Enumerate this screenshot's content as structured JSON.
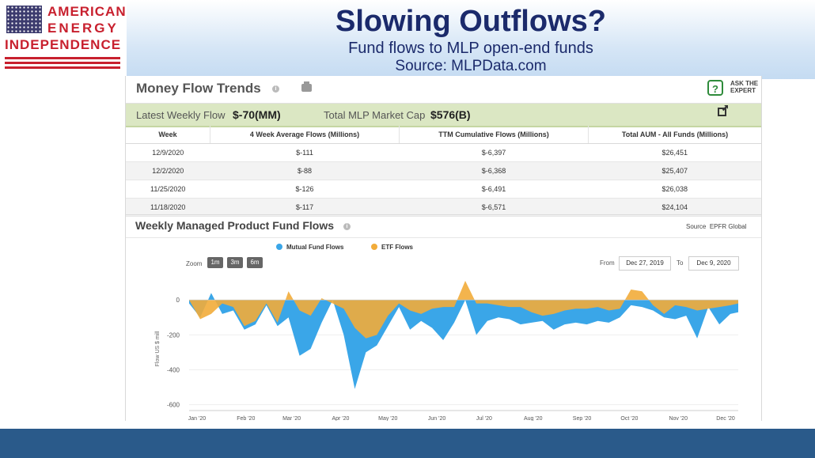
{
  "slide": {
    "title": "Slowing Outflows?",
    "subtitle": "Fund flows to MLP open-end funds",
    "source": "Source: MLPData.com"
  },
  "logo": {
    "line1": "AMERICAN",
    "line2": "ENERGY",
    "line3": "INDEPENDENCE",
    "flag_icon": "us-flag-icon"
  },
  "panel": {
    "title": "Money Flow Trends",
    "ask_expert_top": "ASK THE",
    "ask_expert_bottom": "EXPERT",
    "latest_label": "Latest Weekly Flow",
    "latest_value": "$-70(MM)",
    "cap_label": "Total MLP Market Cap",
    "cap_value": "$576(B)"
  },
  "table": {
    "headers": [
      "Week",
      "4 Week Average Flows (Millions)",
      "TTM Cumulative Flows (Millions)",
      "Total AUM - All Funds (Millions)"
    ],
    "rows": [
      [
        "12/9/2020",
        "$-111",
        "$-6,397",
        "$26,451"
      ],
      [
        "12/2/2020",
        "$-88",
        "$-6,368",
        "$25,407"
      ],
      [
        "11/25/2020",
        "$-126",
        "$-6,491",
        "$26,038"
      ],
      [
        "11/18/2020",
        "$-117",
        "$-6,571",
        "$24,104"
      ]
    ]
  },
  "weekly": {
    "title": "Weekly Managed Product Fund Flows",
    "source_label": "Source",
    "source_value": "EPFR Global",
    "zoom_label": "Zoom",
    "zoom_buttons": [
      "1m",
      "3m",
      "6m"
    ],
    "from_label": "From",
    "from_value": "Dec 27, 2019",
    "to_label": "To",
    "to_value": "Dec 9, 2020"
  },
  "colors": {
    "mutual": "#3aa6e8",
    "etf": "#f2ac3a",
    "title_blue": "#1b2a6b",
    "bottom_bar": "#2a5a8a"
  },
  "chart_data": {
    "type": "area",
    "ylabel": "Flow US $ mill",
    "ylim": [
      -620,
      60
    ],
    "yticks": [
      0,
      -200,
      -400,
      -600
    ],
    "x_tick_labels": [
      "Jan '20",
      "Feb '20",
      "Mar '20",
      "Apr '20",
      "May '20",
      "Jun '20",
      "Jul '20",
      "Aug '20",
      "Sep '20",
      "Oct '20",
      "Nov '20",
      "Dec '20"
    ],
    "x_start": "2019-12-27",
    "x_end": "2020-12-09",
    "series": [
      {
        "name": "Mutual Fund Flows",
        "x": [
          "2019-12-27",
          "2020-01-03",
          "2020-01-10",
          "2020-01-17",
          "2020-01-24",
          "2020-01-31",
          "2020-02-07",
          "2020-02-14",
          "2020-02-21",
          "2020-02-28",
          "2020-03-06",
          "2020-03-13",
          "2020-03-20",
          "2020-03-27",
          "2020-04-03",
          "2020-04-10",
          "2020-04-17",
          "2020-04-24",
          "2020-05-01",
          "2020-05-08",
          "2020-05-15",
          "2020-05-22",
          "2020-05-29",
          "2020-06-05",
          "2020-06-12",
          "2020-06-19",
          "2020-06-26",
          "2020-07-03",
          "2020-07-10",
          "2020-07-17",
          "2020-07-24",
          "2020-07-31",
          "2020-08-07",
          "2020-08-14",
          "2020-08-21",
          "2020-08-28",
          "2020-09-04",
          "2020-09-11",
          "2020-09-18",
          "2020-09-25",
          "2020-10-02",
          "2020-10-09",
          "2020-10-16",
          "2020-10-23",
          "2020-10-30",
          "2020-11-06",
          "2020-11-13",
          "2020-11-20",
          "2020-11-27",
          "2020-12-04",
          "2020-12-09"
        ],
        "values": [
          -20,
          -100,
          40,
          -80,
          -60,
          -170,
          -140,
          -30,
          -150,
          -100,
          -320,
          -280,
          -130,
          0,
          -200,
          -510,
          -300,
          -260,
          -150,
          -40,
          -170,
          -120,
          -160,
          -230,
          -130,
          0,
          -200,
          -120,
          -100,
          -110,
          -140,
          -130,
          -120,
          -170,
          -140,
          -130,
          -140,
          -120,
          -130,
          -100,
          -30,
          -40,
          -60,
          -100,
          -110,
          -90,
          -220,
          -40,
          -140,
          -80,
          -70
        ]
      },
      {
        "name": "ETF Flows",
        "x": [
          "2019-12-27",
          "2020-01-03",
          "2020-01-10",
          "2020-01-17",
          "2020-01-24",
          "2020-01-31",
          "2020-02-07",
          "2020-02-14",
          "2020-02-21",
          "2020-02-28",
          "2020-03-06",
          "2020-03-13",
          "2020-03-20",
          "2020-03-27",
          "2020-04-03",
          "2020-04-10",
          "2020-04-17",
          "2020-04-24",
          "2020-05-01",
          "2020-05-08",
          "2020-05-15",
          "2020-05-22",
          "2020-05-29",
          "2020-06-05",
          "2020-06-12",
          "2020-06-19",
          "2020-06-26",
          "2020-07-03",
          "2020-07-10",
          "2020-07-17",
          "2020-07-24",
          "2020-07-31",
          "2020-08-07",
          "2020-08-14",
          "2020-08-21",
          "2020-08-28",
          "2020-09-04",
          "2020-09-11",
          "2020-09-18",
          "2020-09-25",
          "2020-10-02",
          "2020-10-09",
          "2020-10-16",
          "2020-10-23",
          "2020-10-30",
          "2020-11-06",
          "2020-11-13",
          "2020-11-20",
          "2020-11-27",
          "2020-12-04",
          "2020-12-09"
        ],
        "values": [
          0,
          -110,
          -80,
          -20,
          -40,
          -150,
          -120,
          -20,
          -130,
          50,
          -60,
          -90,
          10,
          -20,
          -50,
          -160,
          -220,
          -200,
          -90,
          -20,
          -60,
          -80,
          -50,
          -40,
          -40,
          110,
          -20,
          -20,
          -30,
          -40,
          -40,
          -70,
          -90,
          -80,
          -60,
          -50,
          -50,
          -40,
          -60,
          -50,
          60,
          50,
          -30,
          -80,
          -30,
          -40,
          -60,
          -50,
          -40,
          -30,
          -20
        ]
      }
    ]
  }
}
